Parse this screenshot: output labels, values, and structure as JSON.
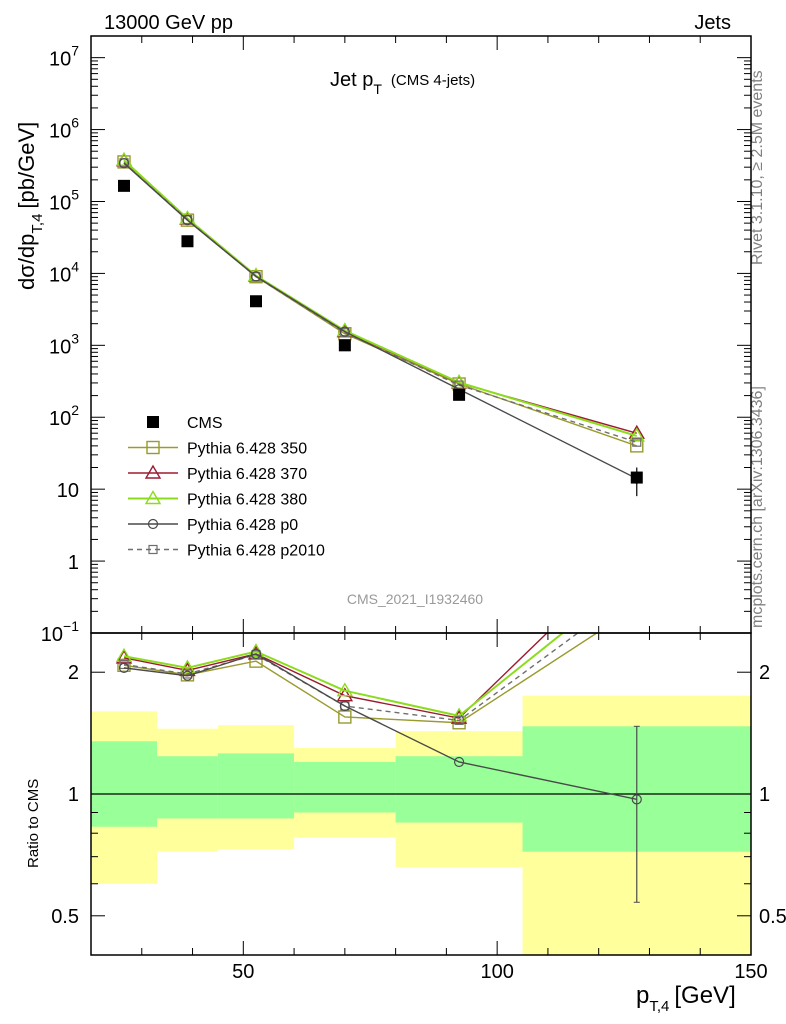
{
  "header": {
    "left": "13000 GeV pp",
    "right": "Jets"
  },
  "side": {
    "rivet": "Rivet 3.1.10, ≥ 2.5M events",
    "mcplots": "mcplots.cern.ch [arXiv:1306.3436]"
  },
  "colors": {
    "cms": "#000000",
    "p350": "#9a9a2e",
    "p370": "#9b1b30",
    "p380": "#8cdc1e",
    "p0": "#4a4a4a",
    "p2010": "#6e6e6e",
    "band_outer": "#ffff9c",
    "band_inner": "#99ff99"
  },
  "chart_data": [
    {
      "type": "line",
      "title": "Jet p",
      "title_sub": "T",
      "title_note": "(CMS 4-jets)",
      "analysis": "CMS_2021_I1932460",
      "ylabel": "dσ/dp",
      "ylabel_sub": "T,4",
      "ylabel_unit": "[pb/GeV]",
      "yscale": "log",
      "xlim": [
        20,
        150
      ],
      "ylim": [
        0.1,
        20000000
      ],
      "ytick_labels": [
        {
          "v": 10000000,
          "base": "10",
          "exp": "7"
        },
        {
          "v": 1000000,
          "base": "10",
          "exp": "6"
        },
        {
          "v": 100000,
          "base": "10",
          "exp": "5"
        },
        {
          "v": 10000,
          "base": "10",
          "exp": "4"
        },
        {
          "v": 1000,
          "base": "10",
          "exp": "3"
        },
        {
          "v": 100,
          "base": "10",
          "exp": "2"
        },
        {
          "v": 10,
          "base": "10",
          "exp": ""
        },
        {
          "v": 1,
          "base": "1",
          "exp": ""
        },
        {
          "v": 0.1,
          "base": "10",
          "exp": "−1"
        }
      ],
      "legend_position": "lower-left",
      "bins": [
        [
          20,
          33
        ],
        [
          33,
          45
        ],
        [
          45,
          60
        ],
        [
          60,
          80
        ],
        [
          80,
          105
        ],
        [
          105,
          150
        ]
      ],
      "x": [
        26.5,
        39,
        52.5,
        70,
        92.5,
        127.5
      ],
      "series": [
        {
          "name": "CMS",
          "key": "cms",
          "marker": "square-filled",
          "values": [
            165000,
            28000,
            4100,
            1000,
            205,
            14.5
          ],
          "yerr_last": [
            8,
            20
          ]
        },
        {
          "name": "Pythia 6.428 350",
          "key": "p350",
          "marker": "square-open",
          "values": [
            355000,
            55000,
            9000,
            1450,
            290,
            40
          ]
        },
        {
          "name": "Pythia 6.428 370",
          "key": "p370",
          "marker": "triangle-open",
          "values": [
            370000,
            57000,
            9200,
            1550,
            300,
            60
          ]
        },
        {
          "name": "Pythia 6.428 380",
          "key": "p380",
          "marker": "triangle-open",
          "values": [
            375000,
            58000,
            9300,
            1600,
            305,
            55
          ]
        },
        {
          "name": "Pythia 6.428 p0",
          "key": "p0",
          "marker": "circle-open",
          "values": [
            340000,
            55000,
            9100,
            1550,
            245,
            14
          ]
        },
        {
          "name": "Pythia 6.428 p2010",
          "key": "p2010",
          "marker": "square-dashed",
          "values": [
            345000,
            56000,
            9000,
            1500,
            280,
            45
          ]
        }
      ]
    },
    {
      "type": "line",
      "ylabel": "Ratio to CMS",
      "xlabel": "p",
      "xlabel_sub": "T,4",
      "xlabel_unit": "[GeV]",
      "yscale": "log",
      "ylim": [
        0.4,
        2.5
      ],
      "xticks": [
        50,
        100,
        150
      ],
      "yticks": [
        0.5,
        1,
        2
      ],
      "band_inner": [
        [
          0.83,
          1.35
        ],
        [
          0.87,
          1.24
        ],
        [
          0.87,
          1.26
        ],
        [
          0.9,
          1.2
        ],
        [
          0.85,
          1.24
        ],
        [
          0.72,
          1.47
        ]
      ],
      "band_outer": [
        [
          0.6,
          1.6
        ],
        [
          0.72,
          1.45
        ],
        [
          0.73,
          1.48
        ],
        [
          0.78,
          1.3
        ],
        [
          0.66,
          1.43
        ],
        [
          0.34,
          1.75
        ]
      ],
      "series": [
        {
          "key": "p350",
          "values": [
            2.08,
            1.97,
            2.13,
            1.55,
            1.5,
            2.9
          ]
        },
        {
          "key": "p370",
          "values": [
            2.17,
            2.02,
            2.22,
            1.75,
            1.54,
            4.1
          ]
        },
        {
          "key": "p380",
          "values": [
            2.19,
            2.05,
            2.25,
            1.8,
            1.56,
            3.5
          ]
        },
        {
          "key": "p0",
          "values": [
            2.05,
            1.96,
            2.22,
            1.65,
            1.2,
            0.97
          ],
          "yerr_last": [
            0.54,
            1.47
          ]
        },
        {
          "key": "p2010",
          "values": [
            2.09,
            1.98,
            2.21,
            1.65,
            1.52,
            3.2
          ]
        }
      ]
    }
  ]
}
